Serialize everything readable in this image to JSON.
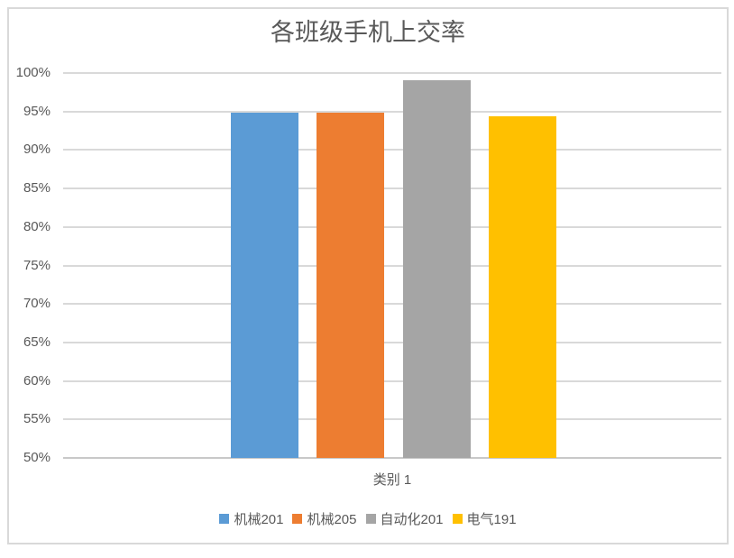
{
  "chart_data": {
    "type": "bar",
    "title": "各班级手机上交率",
    "categories": [
      "类别 1"
    ],
    "series": [
      {
        "name": "机械201",
        "color": "#5B9BD5",
        "values": [
          94.9
        ]
      },
      {
        "name": "机械205",
        "color": "#ED7D31",
        "values": [
          94.9
        ]
      },
      {
        "name": "自动化201",
        "color": "#A5A5A5",
        "values": [
          99.1
        ]
      },
      {
        "name": "电气191",
        "color": "#FFC000",
        "values": [
          94.4
        ]
      }
    ],
    "xlabel": "",
    "ylabel": "",
    "ylim": [
      50,
      100
    ],
    "y_axis": {
      "min": 50,
      "max": 100,
      "step": 5,
      "tick_labels": [
        "50%",
        "55%",
        "60%",
        "65%",
        "70%",
        "75%",
        "80%",
        "85%",
        "90%",
        "95%",
        "100%"
      ]
    },
    "grid": true,
    "legend_position": "bottom"
  },
  "colors": {
    "background": "#FFFFFF",
    "frame_border": "#D9D9D9",
    "gridline": "#D9D9D9",
    "axis_line": "#C8C8C8",
    "text": "#595959"
  }
}
